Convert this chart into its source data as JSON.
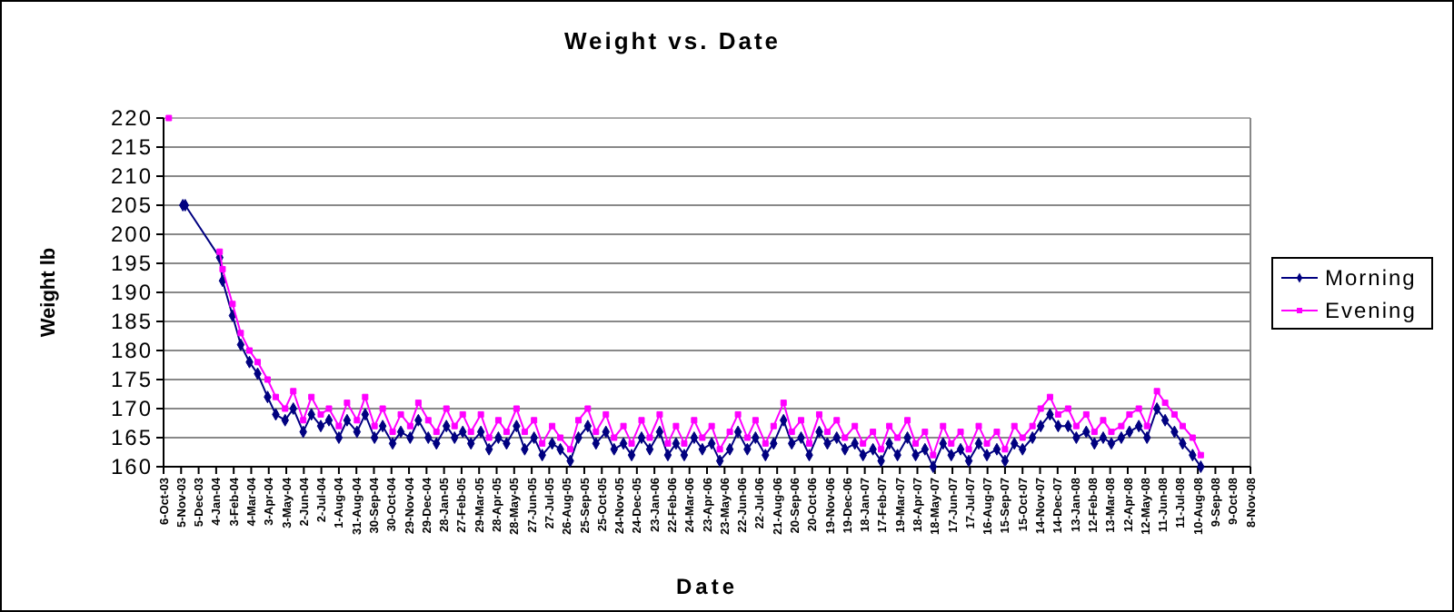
{
  "chart_data": {
    "type": "line",
    "title": "Weight vs. Date",
    "xlabel": "Date",
    "ylabel": "Weight lb",
    "x": [
      "2003-10-15",
      "2003-11-08",
      "2003-11-12",
      "2004-01-10",
      "2004-01-15",
      "2004-02-01",
      "2004-02-15",
      "2004-03-01",
      "2004-03-15",
      "2004-04-01",
      "2004-04-15",
      "2004-05-01",
      "2004-05-15",
      "2004-06-01",
      "2004-06-15",
      "2004-07-01",
      "2004-07-15",
      "2004-08-01",
      "2004-08-15",
      "2004-09-01",
      "2004-09-15",
      "2004-10-01",
      "2004-10-15",
      "2004-11-01",
      "2004-11-15",
      "2004-12-01",
      "2004-12-15",
      "2005-01-01",
      "2005-01-15",
      "2005-02-01",
      "2005-02-15",
      "2005-03-01",
      "2005-03-15",
      "2005-04-01",
      "2005-04-15",
      "2005-05-01",
      "2005-05-15",
      "2005-06-01",
      "2005-06-15",
      "2005-07-01",
      "2005-07-15",
      "2005-08-01",
      "2005-08-15",
      "2005-09-01",
      "2005-09-15",
      "2005-10-01",
      "2005-10-15",
      "2005-11-01",
      "2005-11-15",
      "2005-12-01",
      "2005-12-15",
      "2006-01-01",
      "2006-01-15",
      "2006-02-01",
      "2006-02-15",
      "2006-03-01",
      "2006-03-15",
      "2006-04-01",
      "2006-04-15",
      "2006-05-01",
      "2006-05-15",
      "2006-06-01",
      "2006-06-15",
      "2006-07-01",
      "2006-07-15",
      "2006-08-01",
      "2006-08-15",
      "2006-09-01",
      "2006-09-15",
      "2006-10-01",
      "2006-10-15",
      "2006-11-01",
      "2006-11-15",
      "2006-12-01",
      "2006-12-15",
      "2007-01-01",
      "2007-01-15",
      "2007-02-01",
      "2007-02-15",
      "2007-03-01",
      "2007-03-15",
      "2007-04-01",
      "2007-04-15",
      "2007-05-01",
      "2007-05-15",
      "2007-06-01",
      "2007-06-15",
      "2007-07-01",
      "2007-07-15",
      "2007-08-01",
      "2007-08-15",
      "2007-09-01",
      "2007-09-15",
      "2007-10-01",
      "2007-10-15",
      "2007-11-01",
      "2007-11-15",
      "2007-12-01",
      "2007-12-15",
      "2008-01-01",
      "2008-01-15",
      "2008-02-01",
      "2008-02-15",
      "2008-03-01",
      "2008-03-15",
      "2008-04-01",
      "2008-04-15",
      "2008-05-01",
      "2008-05-15",
      "2008-06-01",
      "2008-06-15",
      "2008-07-01",
      "2008-07-15",
      "2008-08-01",
      "2008-08-15"
    ],
    "series": [
      {
        "name": "Morning",
        "color": "#000080",
        "marker": "diamond",
        "values": [
          null,
          205,
          205,
          196,
          192,
          186,
          181,
          178,
          176,
          172,
          169,
          168,
          170,
          166,
          169,
          167,
          168,
          165,
          168,
          166,
          169,
          165,
          167,
          164,
          166,
          165,
          168,
          165,
          164,
          167,
          165,
          166,
          164,
          166,
          163,
          165,
          164,
          167,
          163,
          165,
          162,
          164,
          163,
          161,
          165,
          167,
          164,
          166,
          163,
          164,
          162,
          165,
          163,
          166,
          162,
          164,
          162,
          165,
          163,
          164,
          161,
          163,
          166,
          163,
          165,
          162,
          164,
          168,
          164,
          165,
          162,
          166,
          164,
          165,
          163,
          164,
          162,
          163,
          161,
          164,
          162,
          165,
          162,
          163,
          160,
          164,
          162,
          163,
          161,
          164,
          162,
          163,
          161,
          164,
          163,
          165,
          167,
          169,
          167,
          167,
          165,
          166,
          164,
          165,
          164,
          165,
          166,
          167,
          165,
          170,
          168,
          166,
          164,
          162,
          160
        ]
      },
      {
        "name": "Evening",
        "color": "#ff00ff",
        "marker": "square",
        "values": [
          220,
          null,
          null,
          197,
          194,
          188,
          183,
          180,
          178,
          175,
          172,
          170,
          173,
          168,
          172,
          169,
          170,
          167,
          171,
          168,
          172,
          167,
          170,
          166,
          169,
          167,
          171,
          168,
          166,
          170,
          167,
          169,
          166,
          169,
          165,
          168,
          166,
          170,
          166,
          168,
          164,
          167,
          165,
          163,
          168,
          170,
          166,
          169,
          165,
          167,
          164,
          168,
          165,
          169,
          164,
          167,
          164,
          168,
          165,
          167,
          163,
          166,
          169,
          165,
          168,
          164,
          167,
          171,
          166,
          168,
          164,
          169,
          166,
          168,
          165,
          167,
          164,
          166,
          163,
          167,
          165,
          168,
          164,
          166,
          162,
          167,
          164,
          166,
          163,
          167,
          164,
          166,
          163,
          167,
          165,
          167,
          170,
          172,
          169,
          170,
          167,
          169,
          166,
          168,
          166,
          167,
          169,
          170,
          167,
          173,
          171,
          169,
          167,
          165,
          162
        ]
      }
    ],
    "xlim": [
      "2003-10-06",
      "2008-11-08"
    ],
    "xticks": [
      {
        "value": "2003-10-06",
        "label": "6-Oct-03"
      },
      {
        "value": "2003-11-05",
        "label": "5-Nov-03"
      },
      {
        "value": "2003-12-05",
        "label": "5-Dec-03"
      },
      {
        "value": "2004-01-04",
        "label": "4-Jan-04"
      },
      {
        "value": "2004-02-03",
        "label": "3-Feb-04"
      },
      {
        "value": "2004-03-04",
        "label": "4-Mar-04"
      },
      {
        "value": "2004-04-03",
        "label": "3-Apr-04"
      },
      {
        "value": "2004-05-03",
        "label": "3-May-04"
      },
      {
        "value": "2004-06-02",
        "label": "2-Jun-04"
      },
      {
        "value": "2004-07-02",
        "label": "2-Jul-04"
      },
      {
        "value": "2004-08-01",
        "label": "1-Aug-04"
      },
      {
        "value": "2004-08-31",
        "label": "31-Aug-04"
      },
      {
        "value": "2004-09-30",
        "label": "30-Sep-04"
      },
      {
        "value": "2004-10-30",
        "label": "30-Oct-04"
      },
      {
        "value": "2004-11-29",
        "label": "29-Nov-04"
      },
      {
        "value": "2004-12-29",
        "label": "29-Dec-04"
      },
      {
        "value": "2005-01-28",
        "label": "28-Jan-05"
      },
      {
        "value": "2005-02-27",
        "label": "27-Feb-05"
      },
      {
        "value": "2005-03-29",
        "label": "29-Mar-05"
      },
      {
        "value": "2005-04-28",
        "label": "28-Apr-05"
      },
      {
        "value": "2005-05-28",
        "label": "28-May-05"
      },
      {
        "value": "2005-06-27",
        "label": "27-Jun-05"
      },
      {
        "value": "2005-07-27",
        "label": "27-Jul-05"
      },
      {
        "value": "2005-08-26",
        "label": "26-Aug-05"
      },
      {
        "value": "2005-09-25",
        "label": "25-Sep-05"
      },
      {
        "value": "2005-10-25",
        "label": "25-Oct-05"
      },
      {
        "value": "2005-11-24",
        "label": "24-Nov-05"
      },
      {
        "value": "2005-12-24",
        "label": "24-Dec-05"
      },
      {
        "value": "2006-01-23",
        "label": "23-Jan-06"
      },
      {
        "value": "2006-02-22",
        "label": "22-Feb-06"
      },
      {
        "value": "2006-03-24",
        "label": "24-Mar-06"
      },
      {
        "value": "2006-04-23",
        "label": "23-Apr-06"
      },
      {
        "value": "2006-05-23",
        "label": "23-May-06"
      },
      {
        "value": "2006-06-22",
        "label": "22-Jun-06"
      },
      {
        "value": "2006-07-22",
        "label": "22-Jul-06"
      },
      {
        "value": "2006-08-21",
        "label": "21-Aug-06"
      },
      {
        "value": "2006-09-20",
        "label": "20-Sep-06"
      },
      {
        "value": "2006-10-20",
        "label": "20-Oct-06"
      },
      {
        "value": "2006-11-19",
        "label": "19-Nov-06"
      },
      {
        "value": "2006-12-19",
        "label": "19-Dec-06"
      },
      {
        "value": "2007-01-18",
        "label": "18-Jan-07"
      },
      {
        "value": "2007-02-17",
        "label": "17-Feb-07"
      },
      {
        "value": "2007-03-19",
        "label": "19-Mar-07"
      },
      {
        "value": "2007-04-18",
        "label": "18-Apr-07"
      },
      {
        "value": "2007-05-18",
        "label": "18-May-07"
      },
      {
        "value": "2007-06-17",
        "label": "17-Jun-07"
      },
      {
        "value": "2007-07-17",
        "label": "17-Jul-07"
      },
      {
        "value": "2007-08-16",
        "label": "16-Aug-07"
      },
      {
        "value": "2007-09-15",
        "label": "15-Sep-07"
      },
      {
        "value": "2007-10-15",
        "label": "15-Oct-07"
      },
      {
        "value": "2007-11-14",
        "label": "14-Nov-07"
      },
      {
        "value": "2007-12-14",
        "label": "14-Dec-07"
      },
      {
        "value": "2008-01-13",
        "label": "13-Jan-08"
      },
      {
        "value": "2008-02-12",
        "label": "12-Feb-08"
      },
      {
        "value": "2008-03-13",
        "label": "13-Mar-08"
      },
      {
        "value": "2008-04-12",
        "label": "12-Apr-08"
      },
      {
        "value": "2008-05-12",
        "label": "12-May-08"
      },
      {
        "value": "2008-06-11",
        "label": "11-Jun-08"
      },
      {
        "value": "2008-07-11",
        "label": "11-Jul-08"
      },
      {
        "value": "2008-08-10",
        "label": "10-Aug-08"
      },
      {
        "value": "2008-09-09",
        "label": "9-Sep-08"
      },
      {
        "value": "2008-10-09",
        "label": "9-Oct-08"
      },
      {
        "value": "2008-11-08",
        "label": "8-Nov-08"
      }
    ],
    "ylim": [
      160,
      220
    ],
    "yticks": [
      160,
      165,
      170,
      175,
      180,
      185,
      190,
      195,
      200,
      205,
      210,
      215,
      220
    ],
    "grid": "y",
    "legend": "right",
    "line_style": "solid"
  }
}
